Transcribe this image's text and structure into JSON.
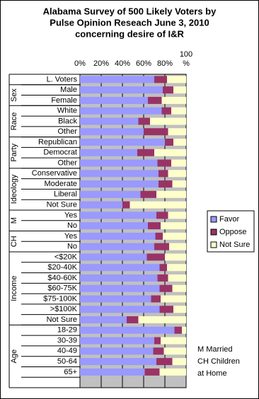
{
  "chart_data": {
    "type": "stacked-barh",
    "title": [
      "Alabama Survey of 500 Likely Voters by",
      "Pulse Opinion Reseach June 3, 2010",
      "concerning desire of I&R"
    ],
    "categories": [
      "L. Voters",
      "Male",
      "Female",
      "White",
      "Black",
      "Other",
      "Republican",
      "Democrat",
      "Other",
      "Conservative",
      "Moderate",
      "Liberal",
      "Not Sure",
      "Yes",
      "No",
      "Yes",
      "No",
      "<$20K",
      "$20-40K",
      "$40-60K",
      "$60-75K",
      "$75-100K",
      ">$100K",
      "Not Sure",
      "18-29",
      "30-39",
      "40-49",
      "50-64",
      "65+",
      null
    ],
    "groups": [
      {
        "label": null,
        "count": 1
      },
      {
        "label": "Sex",
        "count": 2
      },
      {
        "label": "Race",
        "count": 3
      },
      {
        "label": "Party",
        "count": 3
      },
      {
        "label": "Ideology",
        "count": 4
      },
      {
        "label": "M",
        "count": 2
      },
      {
        "label": "CH",
        "count": 2
      },
      {
        "label": "Income",
        "count": 7
      },
      {
        "label": "Age",
        "count": 6
      }
    ],
    "series": [
      {
        "name": "Favor",
        "color": "#9999ff",
        "values": [
          70,
          78,
          64,
          77,
          55,
          60,
          80,
          54,
          73,
          74,
          74,
          57,
          40,
          72,
          64,
          71,
          70,
          63,
          75,
          73,
          75,
          67,
          75,
          44,
          89,
          70,
          69,
          72,
          61,
          null
        ]
      },
      {
        "name": "Oppose",
        "color": "#993366",
        "values": [
          12,
          10,
          13,
          9,
          11,
          23,
          8,
          16,
          13,
          9,
          13,
          15,
          7,
          11,
          12,
          7,
          14,
          17,
          7,
          10,
          12,
          9,
          13,
          11,
          7,
          6,
          10,
          15,
          14,
          null
        ]
      },
      {
        "name": "Not Sure",
        "color": "#ffffcc",
        "values": [
          18,
          12,
          23,
          14,
          34,
          17,
          12,
          30,
          14,
          17,
          13,
          28,
          53,
          17,
          24,
          22,
          16,
          20,
          18,
          17,
          13,
          24,
          12,
          45,
          4,
          24,
          21,
          13,
          25,
          null
        ]
      }
    ],
    "xlim": [
      0,
      100
    ],
    "xticks": [
      {
        "value": 0,
        "label": "0%"
      },
      {
        "value": 20,
        "label": "20%"
      },
      {
        "value": 40,
        "label": "40%"
      },
      {
        "value": 60,
        "label": "60%"
      },
      {
        "value": 80,
        "label": "80%"
      },
      {
        "value": 100,
        "label": "100 %"
      }
    ],
    "grid": true,
    "legend": "right",
    "note": [
      "M Married",
      "CH Children",
      "at Home"
    ]
  }
}
